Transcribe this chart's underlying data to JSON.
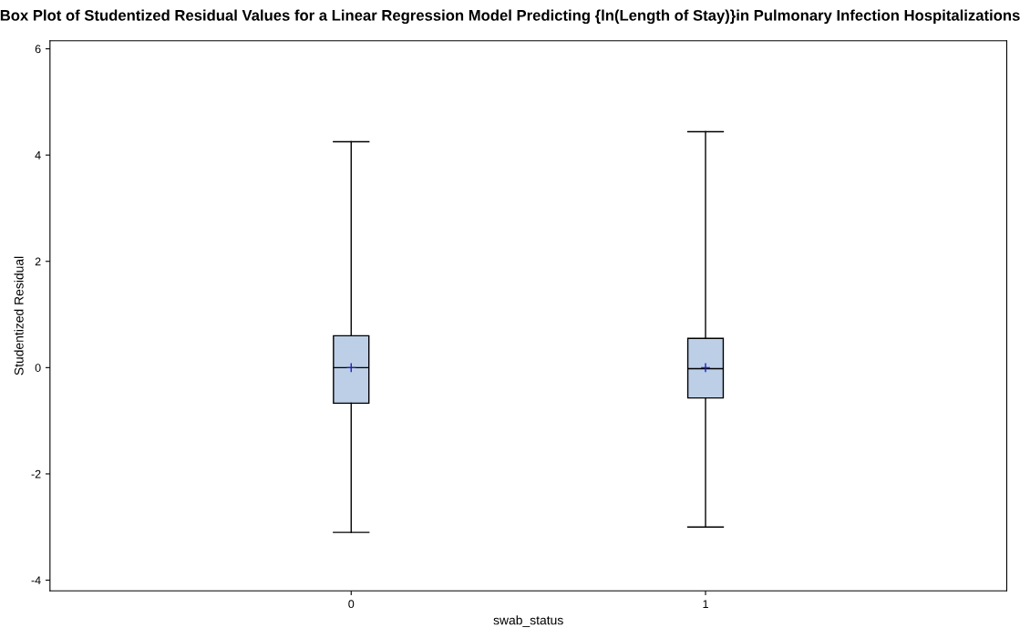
{
  "chart_data": {
    "type": "box",
    "title": "Box Plot of Studentized Residual Values for a Linear Regression Model Predicting {ln(Length of Stay)}in Pulmonary Infection Hospitalizations",
    "xlabel": "swab_status",
    "ylabel": "Studentized Residual",
    "categories": [
      "0",
      "1"
    ],
    "series": [
      {
        "color": "#bccfe6",
        "boxes": [
          {
            "low": -3.1,
            "q1": -0.67,
            "median": 0.0,
            "q3": 0.6,
            "high": 4.25,
            "mean": 0.0
          },
          {
            "low": -3.0,
            "q1": -0.57,
            "median": -0.02,
            "q3": 0.55,
            "high": 4.44,
            "mean": 0.0
          }
        ]
      }
    ],
    "ylim": [
      -4.2,
      6.15
    ],
    "yticks": [
      -4,
      -2,
      0,
      2,
      4,
      6
    ],
    "grid": false,
    "legend": false
  }
}
